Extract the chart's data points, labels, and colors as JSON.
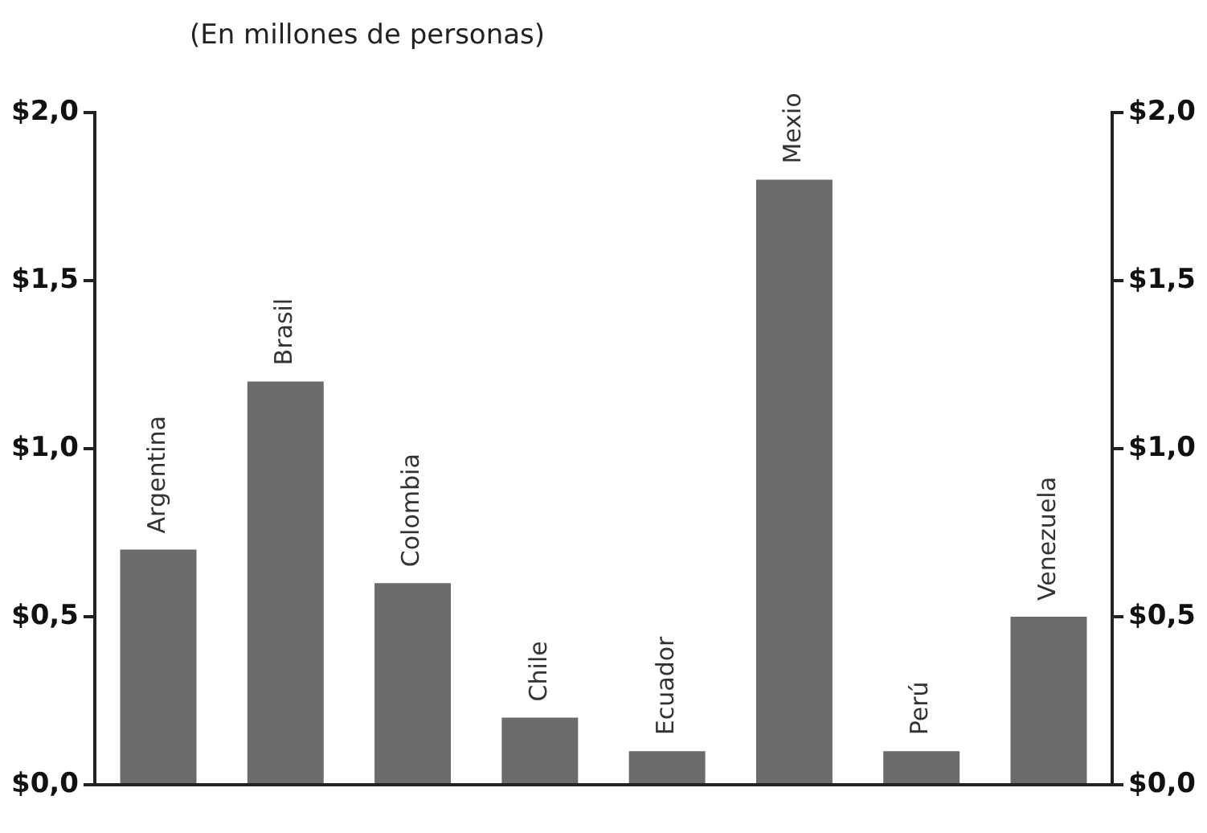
{
  "chart_data": {
    "type": "bar",
    "title": "(En millones de personas)",
    "categories": [
      "Argentina",
      "Brasil",
      "Colombia",
      "Chile",
      "Ecuador",
      "Mexio",
      "Perú",
      "Venezuela"
    ],
    "values": [
      0.7,
      1.2,
      0.6,
      0.2,
      0.1,
      1.8,
      0.1,
      0.5
    ],
    "color": "#6b6b6b",
    "ylim": [
      0,
      2
    ],
    "yticks": [
      {
        "value": 0,
        "label": "$0,0"
      },
      {
        "value": 0.5,
        "label": "$0,5"
      },
      {
        "value": 1,
        "label": "$1,0"
      },
      {
        "value": 1.5,
        "label": "$1,5"
      },
      {
        "value": 2,
        "label": "$2,0"
      }
    ],
    "y2lim": [
      0,
      2
    ],
    "y2ticks": [
      {
        "value": 0,
        "label": "$0,0"
      },
      {
        "value": 0.5,
        "label": "$0,5"
      },
      {
        "value": 1,
        "label": "$1,0"
      },
      {
        "value": 1.5,
        "label": "$1,5"
      },
      {
        "value": 2,
        "label": "$2,0"
      }
    ],
    "tick_labels": "y",
    "grid": false,
    "legend": false
  }
}
